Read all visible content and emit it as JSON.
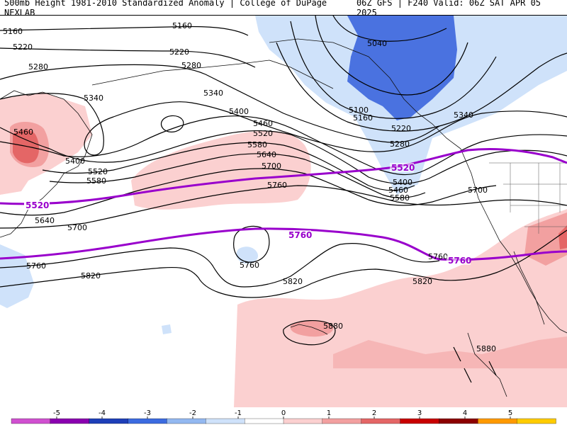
{
  "header": {
    "left_title": "500mb Height 1981-2010 Standardized Anomaly | College of DuPage NEXLAB",
    "right_title": "06Z GFS | F240 Valid: 06Z SAT APR 05 2025"
  },
  "contour_labels": {
    "c5160a": "5160",
    "c5160b": "5160",
    "c5160c": "5160",
    "c5220a": "5220",
    "c5220b": "5220",
    "c5220c": "5220",
    "c5280a": "5280",
    "c5280b": "5280",
    "c5280c": "5280",
    "c5340a": "5340",
    "c5340b": "5340",
    "c5340c": "5340",
    "c5400a": "5400",
    "c5400b": "5400",
    "c5400c": "5400",
    "c5460a": "5460",
    "c5460b": "5460",
    "c5460c": "5460",
    "c5520a": "5520",
    "c5520b": "5520",
    "c5580a": "5580",
    "c5580b": "5580",
    "c5580c": "5580",
    "c5640a": "5640",
    "c5640b": "5640",
    "c5700a": "5700",
    "c5700b": "5700",
    "c5700c": "5700",
    "c5760a": "5760",
    "c5760b": "5760",
    "c5760c": "5760",
    "c5760d": "5760",
    "c5820a": "5820",
    "c5820b": "5820",
    "c5820c": "5820",
    "c5880a": "5880",
    "c5880b": "5880",
    "c5040": "5040",
    "c5100": "5100"
  },
  "highlight_labels": {
    "h5520a": "5520",
    "h5520b": "5520",
    "h5760a": "5760",
    "h5760b": "5760"
  },
  "colorbar": {
    "ticks": [
      "-5",
      "-4",
      "-3",
      "-2",
      "-1",
      "0",
      "1",
      "2",
      "3",
      "4",
      "5"
    ],
    "colors": [
      "#d050d0",
      "#8a00b0",
      "#1e3fb8",
      "#3c6be0",
      "#93b8f0",
      "#cfe2fa",
      "#ffffff",
      "#fbd0d0",
      "#f2a0a0",
      "#e46666",
      "#c80000",
      "#8c0000",
      "#ff9a00",
      "#ffcc00"
    ]
  },
  "colors": {
    "highlight_contour": "#9900cc",
    "neg_light": "#cfe2fa",
    "neg_med": "#93b8f0",
    "neg_dark": "#4a72e0",
    "pos_light": "#fbd0d0",
    "pos_med": "#f2a0a0",
    "pos_dark": "#e46666"
  }
}
